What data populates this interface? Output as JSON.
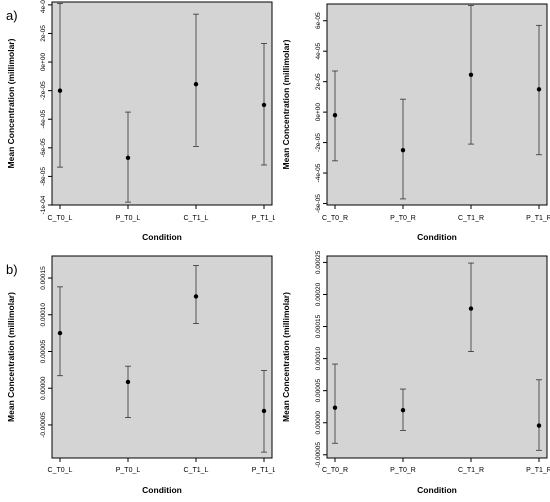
{
  "figure": {
    "panel_labels": [
      "a)",
      "b)"
    ]
  },
  "chart_data": [
    {
      "type": "scatter",
      "errorbars": true,
      "xlabel": "Condition",
      "ylabel": "Mean Concentration (millimolar)",
      "categories": [
        "C_T0_L",
        "P_T0_L",
        "C_T1_L",
        "P_T1_L"
      ],
      "values": [
        -2e-05,
        -6.7e-05,
        -1.55e-05,
        -3e-05
      ],
      "lower": [
        -7.35e-05,
        -9.8e-05,
        -5.9e-05,
        -7.2e-05
      ],
      "upper": [
        4.1e-05,
        -3.5e-05,
        3.35e-05,
        1.3e-05
      ],
      "ylim": [
        -0.0001,
        4.2e-05
      ],
      "yticks": [
        -0.0001,
        -8e-05,
        -6e-05,
        -4e-05,
        -2e-05,
        0,
        2e-05,
        4e-05
      ],
      "ytick_labels": [
        "-1e-04",
        "-8e-05",
        "-6e-05",
        "-4e-05",
        "-2e-05",
        "0e+00",
        "2e-05",
        "4e-05"
      ],
      "grid": false,
      "background": "#d4d4d4"
    },
    {
      "type": "scatter",
      "errorbars": true,
      "xlabel": "Condition",
      "ylabel": "Mean Concentration (millimolar)",
      "categories": [
        "C_T0_R",
        "P_T0_R",
        "C_T1_R",
        "P_T1_R"
      ],
      "values": [
        -2e-06,
        -2.5e-05,
        2.45e-05,
        1.5e-05
      ],
      "lower": [
        -3.2e-05,
        -5.7e-05,
        -2.1e-05,
        -2.8e-05
      ],
      "upper": [
        2.7e-05,
        8.5e-06,
        7e-05,
        5.7e-05
      ],
      "ylim": [
        -6.1e-05,
        7.1e-05
      ],
      "yticks": [
        -6e-05,
        -4e-05,
        -2e-05,
        0,
        2e-05,
        4e-05,
        6e-05
      ],
      "ytick_labels": [
        "-6e-05",
        "-4e-05",
        "-2e-05",
        "0e+00",
        "2e-05",
        "4e-05",
        "6e-05"
      ],
      "grid": false,
      "background": "#d4d4d4"
    },
    {
      "type": "scatter",
      "errorbars": true,
      "xlabel": "Condition",
      "ylabel": "Mean Concentration (millimolar)",
      "categories": [
        "C_T0_L",
        "P_T0_L",
        "C_T1_L",
        "P_T1_L"
      ],
      "values": [
        7.5e-05,
        8.5e-06,
        0.000125,
        -3.1e-05
      ],
      "lower": [
        1.7e-05,
        -4e-05,
        8.8e-05,
        -8.7e-05
      ],
      "upper": [
        0.000138,
        3e-05,
        0.000167,
        2.4e-05
      ],
      "ylim": [
        -9.5e-05,
        0.00018
      ],
      "yticks": [
        -5e-05,
        0,
        5e-05,
        0.0001,
        0.00015
      ],
      "ytick_labels": [
        "-0.00005",
        "0.00000",
        "0.00005",
        "0.00010",
        "0.00015"
      ],
      "grid": false,
      "background": "#d4d4d4"
    },
    {
      "type": "scatter",
      "errorbars": true,
      "xlabel": "Condition",
      "ylabel": "Mean Concentration (millimolar)",
      "categories": [
        "C_T0_R",
        "P_T0_R",
        "C_T1_R",
        "P_T1_R"
      ],
      "values": [
        2.35e-05,
        1.95e-05,
        0.000178,
        -4.5e-06
      ],
      "lower": [
        -3.2e-05,
        -1.2e-05,
        0.000111,
        -4.3e-05
      ],
      "upper": [
        9.15e-05,
        5.25e-05,
        0.000249,
        6.7e-05
      ],
      "ylim": [
        -5.5e-05,
        0.00026
      ],
      "yticks": [
        -5e-05,
        0,
        5e-05,
        0.0001,
        0.00015,
        0.0002,
        0.00025
      ],
      "ytick_labels": [
        "-0.00005",
        "0.00000",
        "0.00005",
        "0.00010",
        "0.00015",
        "0.00020",
        "0.00025"
      ],
      "grid": false,
      "background": "#d4d4d4"
    }
  ]
}
